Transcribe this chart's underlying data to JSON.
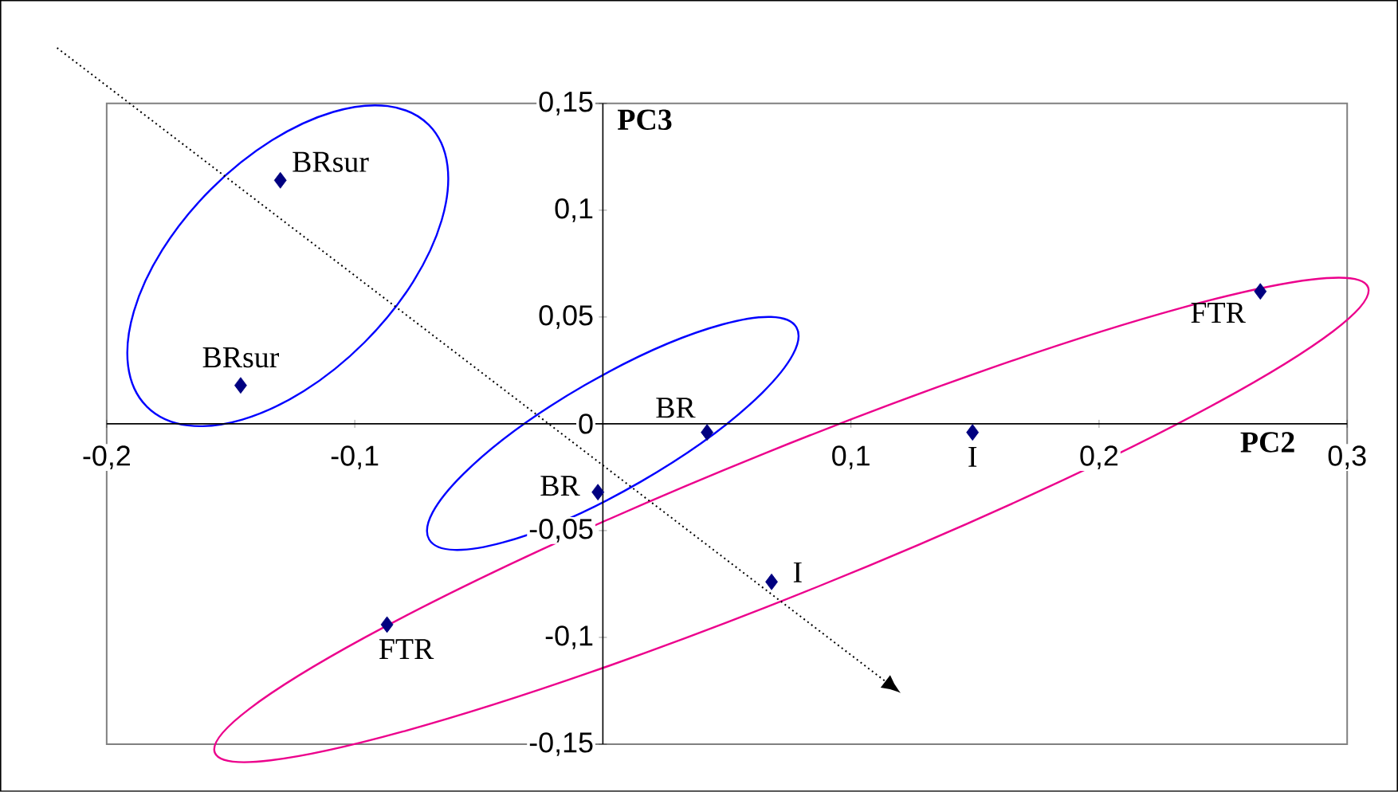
{
  "chart_data": {
    "type": "scatter",
    "x": [
      -0.13,
      -0.146,
      0.042,
      -0.002,
      0.149,
      0.068,
      0.265,
      -0.087
    ],
    "values": [
      0.114,
      0.018,
      -0.004,
      -0.032,
      -0.004,
      -0.074,
      0.062,
      -0.094
    ],
    "color": "#000080",
    "marker": "diamond",
    "grid": false,
    "xlabel": "PC2",
    "ylabel": "PC3",
    "xlim": [
      -0.2,
      0.3
    ],
    "xticks": [
      {
        "value": -0.2,
        "label": "-0,2"
      },
      {
        "value": -0.1,
        "label": "-0,1"
      },
      {
        "value": 0,
        "label": null
      },
      {
        "value": 0.1,
        "label": "0,1"
      },
      {
        "value": 0.2,
        "label": "0,2"
      },
      {
        "value": 0.3,
        "label": "0,3"
      }
    ],
    "ylim": [
      -0.15,
      0.15
    ],
    "yticks": [
      {
        "value": -0.15,
        "label": "-0,15"
      },
      {
        "value": -0.1,
        "label": "-0,1"
      },
      {
        "value": -0.05,
        "label": "-0,05"
      },
      {
        "value": 0,
        "label": "0"
      },
      {
        "value": 0.05,
        "label": "0,05"
      },
      {
        "value": 0.1,
        "label": "0,1"
      },
      {
        "value": 0.15,
        "label": "0,15"
      }
    ],
    "annotations": [
      {
        "text": "BRsur",
        "x": -0.13,
        "y": 0.114
      },
      {
        "text": "BRsur",
        "x": -0.146,
        "y": 0.018
      },
      {
        "text": "BR",
        "x": 0.042,
        "y": -0.004
      },
      {
        "text": "BR",
        "x": -0.002,
        "y": -0.032
      },
      {
        "text": "I",
        "x": 0.149,
        "y": -0.004
      },
      {
        "text": "I",
        "x": 0.068,
        "y": -0.074
      },
      {
        "text": "FTR",
        "x": 0.265,
        "y": 0.062
      },
      {
        "text": "FTR",
        "x": -0.087,
        "y": -0.094
      }
    ]
  }
}
